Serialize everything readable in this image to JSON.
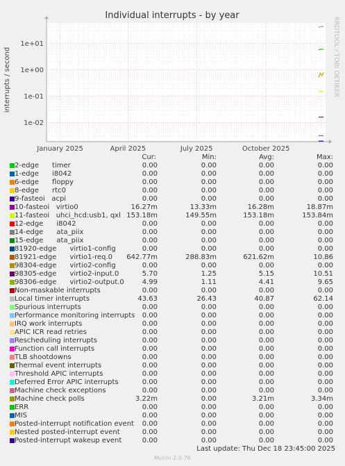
{
  "chart_data": {
    "type": "line",
    "title": "Individual interrupts - by year",
    "ylabel": "interrupts / second",
    "side_label": "RRDTOOL / TOBI OETIKER",
    "y_scale": "log",
    "yticks": [
      {
        "value": 10,
        "label": "1e+01"
      },
      {
        "value": 1,
        "label": "1e+00"
      },
      {
        "value": 0.1,
        "label": "1e-01"
      },
      {
        "value": 0.01,
        "label": "1e-02"
      }
    ],
    "xticks": [
      {
        "value": "2025-01-01",
        "label": "January 2025"
      },
      {
        "value": "2025-04-01",
        "label": "April 2025"
      },
      {
        "value": "2025-07-01",
        "label": "July 2025"
      },
      {
        "value": "2025-10-01",
        "label": "October 2025"
      }
    ],
    "grid": true,
    "series_marks": [
      {
        "color": "#00cc00",
        "y": [
          5.7,
          6.1,
          5.9
        ]
      },
      {
        "color": "#999999",
        "y": [
          41,
          43.6,
          44
        ]
      },
      {
        "color": "#ccaa00",
        "y": [
          0.52,
          0.75,
          0.6,
          0.8
        ]
      },
      {
        "color": "#990099",
        "y": [
          0.0163,
          0.0163
        ]
      },
      {
        "color": "#ccff00",
        "y": [
          0.153,
          0.153
        ]
      },
      {
        "color": "#777777",
        "y": [
          0.0032,
          0.0032
        ]
      },
      {
        "color": "#0000cc",
        "y": [
          0.002,
          0.002
        ]
      }
    ]
  },
  "legend": {
    "headers": {
      "cur": "Cur:",
      "min": "Min:",
      "avg": "Avg:",
      "max": "Max:"
    },
    "rows": [
      {
        "color": "#00cc00",
        "name": "2-edge      timer",
        "cur": "0.00",
        "min": "0.00",
        "avg": "0.00",
        "max": "0.00"
      },
      {
        "color": "#0066b3",
        "name": "1-edge      i8042",
        "cur": "0.00",
        "min": "0.00",
        "avg": "0.00",
        "max": "0.00"
      },
      {
        "color": "#ff8000",
        "name": "6-edge      floppy",
        "cur": "0.00",
        "min": "0.00",
        "avg": "0.00",
        "max": "0.00"
      },
      {
        "color": "#ffcc00",
        "name": "8-edge      rtc0",
        "cur": "0.00",
        "min": "0.00",
        "avg": "0.00",
        "max": "0.00"
      },
      {
        "color": "#330099",
        "name": "9-fasteoi   acpi",
        "cur": "0.00",
        "min": "0.00",
        "avg": "0.00",
        "max": "0.00"
      },
      {
        "color": "#990099",
        "name": "10-fasteoi   virtio0",
        "cur": "16.27m",
        "min": "13.33m",
        "avg": "16.28m",
        "max": "18.87m"
      },
      {
        "color": "#ccff00",
        "name": "11-fasteoi   uhci_hcd:usb1, qxl",
        "cur": "153.18m",
        "min": "149.55m",
        "avg": "153.18m",
        "max": "153.84m"
      },
      {
        "color": "#ff0000",
        "name": "12-edge      i8042",
        "cur": "0.00",
        "min": "0.00",
        "avg": "0.00",
        "max": "0.00"
      },
      {
        "color": "#808080",
        "name": "14-edge      ata_piix",
        "cur": "0.00",
        "min": "0.00",
        "avg": "0.00",
        "max": "0.00"
      },
      {
        "color": "#008f00",
        "name": "15-edge      ata_piix",
        "cur": "0.00",
        "min": "0.00",
        "avg": "0.00",
        "max": "0.00"
      },
      {
        "color": "#00487d",
        "name": "81920-edge      virtio1-config",
        "cur": "0.00",
        "min": "0.00",
        "avg": "0.00",
        "max": "0.00"
      },
      {
        "color": "#b35a00",
        "name": "81921-edge      virtio1-req.0",
        "cur": "642.77m",
        "min": "288.83m",
        "avg": "621.62m",
        "max": "10.86"
      },
      {
        "color": "#b38f00",
        "name": "98304-edge      virtio2-config",
        "cur": "0.00",
        "min": "0.00",
        "avg": "0.00",
        "max": "0.00"
      },
      {
        "color": "#6b006b",
        "name": "98305-edge      virtio2-input.0",
        "cur": "5.70",
        "min": "1.25",
        "avg": "5.15",
        "max": "10.51"
      },
      {
        "color": "#8fb300",
        "name": "98306-edge      virtio2-output.0",
        "cur": "4.99",
        "min": "1.11",
        "avg": "4.41",
        "max": "9.65"
      },
      {
        "color": "#b30000",
        "name": "Non-maskable interrupts",
        "cur": "0.00",
        "min": "0.00",
        "avg": "0.00",
        "max": "0.00"
      },
      {
        "color": "#bebebe",
        "name": "Local timer interrupts",
        "cur": "43.63",
        "min": "26.43",
        "avg": "40.87",
        "max": "62.14"
      },
      {
        "color": "#80ff80",
        "name": "Spurious interrupts",
        "cur": "0.00",
        "min": "0.00",
        "avg": "0.00",
        "max": "0.00"
      },
      {
        "color": "#80c9ff",
        "name": "Performance monitoring interrupts",
        "cur": "0.00",
        "min": "0.00",
        "avg": "0.00",
        "max": "0.00"
      },
      {
        "color": "#ffc080",
        "name": "IRQ work interrupts",
        "cur": "0.00",
        "min": "0.00",
        "avg": "0.00",
        "max": "0.00"
      },
      {
        "color": "#ffe680",
        "name": "APIC ICR read retries",
        "cur": "0.00",
        "min": "0.00",
        "avg": "0.00",
        "max": "0.00"
      },
      {
        "color": "#aa80ff",
        "name": "Rescheduling interrupts",
        "cur": "0.00",
        "min": "0.00",
        "avg": "0.00",
        "max": "0.00"
      },
      {
        "color": "#ee00cc",
        "name": "Function call interrupts",
        "cur": "0.00",
        "min": "0.00",
        "avg": "0.00",
        "max": "0.00"
      },
      {
        "color": "#ff8080",
        "name": "TLB shootdowns",
        "cur": "0.00",
        "min": "0.00",
        "avg": "0.00",
        "max": "0.00"
      },
      {
        "color": "#666600",
        "name": "Thermal event interrupts",
        "cur": "0.00",
        "min": "0.00",
        "avg": "0.00",
        "max": "0.00"
      },
      {
        "color": "#ffbfff",
        "name": "Threshold APIC interrupts",
        "cur": "0.00",
        "min": "0.00",
        "avg": "0.00",
        "max": "0.00"
      },
      {
        "color": "#00ffcc",
        "name": "Deferred Error APIC interrupts",
        "cur": "0.00",
        "min": "0.00",
        "avg": "0.00",
        "max": "0.00"
      },
      {
        "color": "#cc6699",
        "name": "Machine check exceptions",
        "cur": "0.00",
        "min": "0.00",
        "avg": "0.00",
        "max": "0.00"
      },
      {
        "color": "#999900",
        "name": "Machine check polls",
        "cur": "3.22m",
        "min": "0.00",
        "avg": "3.21m",
        "max": "3.34m"
      },
      {
        "color": "#00cc00",
        "name": "ERR",
        "cur": "0.00",
        "min": "0.00",
        "avg": "0.00",
        "max": "0.00"
      },
      {
        "color": "#0066b3",
        "name": "MIS",
        "cur": "0.00",
        "min": "0.00",
        "avg": "0.00",
        "max": "0.00"
      },
      {
        "color": "#ff8000",
        "name": "Posted-interrupt notification event",
        "cur": "0.00",
        "min": "0.00",
        "avg": "0.00",
        "max": "0.00"
      },
      {
        "color": "#ffcc00",
        "name": "Nested posted-interrupt event",
        "cur": "0.00",
        "min": "0.00",
        "avg": "0.00",
        "max": "0.00"
      },
      {
        "color": "#330099",
        "name": "Posted-interrupt wakeup event",
        "cur": "0.00",
        "min": "0.00",
        "avg": "0.00",
        "max": "0.00"
      }
    ]
  },
  "footer": {
    "last_update": "Last update: Thu Dec 18 23:45:00 2025",
    "version": "Munin 2.0.76"
  }
}
